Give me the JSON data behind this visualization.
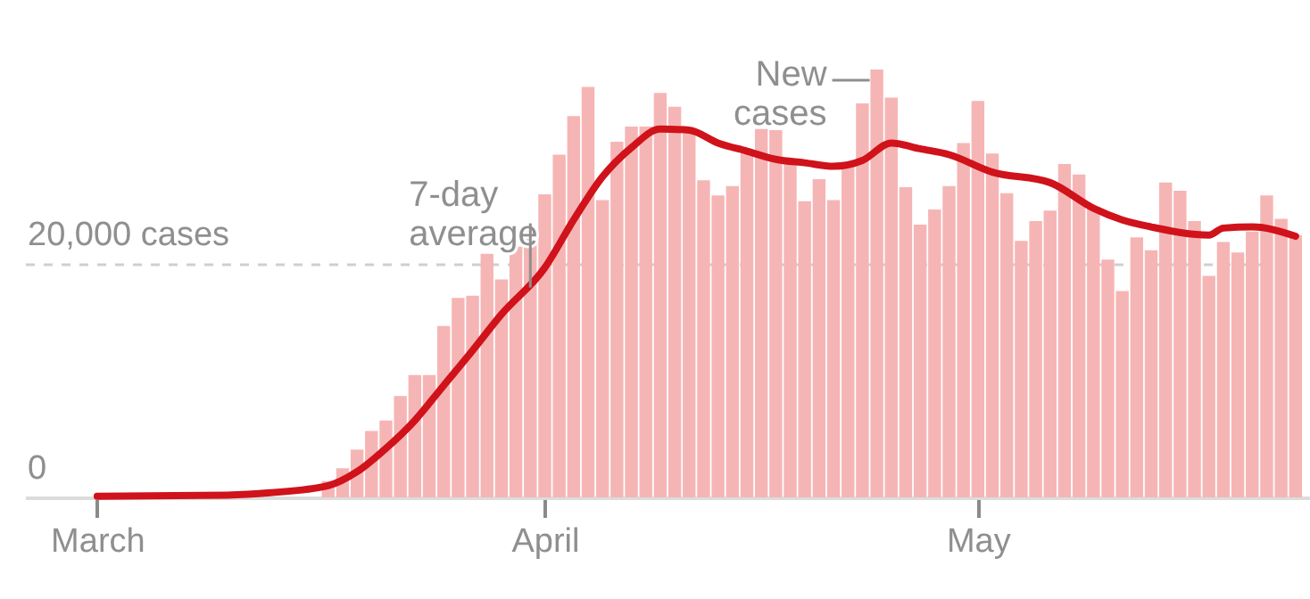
{
  "chart_data": {
    "type": "bar",
    "xlim": [
      "--02-24",
      "--05-24"
    ],
    "xticks": [
      {
        "value": "--03-01",
        "label": "March"
      },
      {
        "value": "--04-01",
        "label": "April"
      },
      {
        "value": "--05-01",
        "label": "May"
      }
    ],
    "ylim": [
      0,
      36700
    ],
    "yticks": [
      {
        "value": 0,
        "label": "0"
      },
      {
        "value": 20000,
        "label": "20,000 cases"
      }
    ],
    "grid": "y",
    "annotations": [
      {
        "text": "7-day average",
        "x": "--03-31",
        "y": 18000
      },
      {
        "text": "New cases",
        "x": "--04-24",
        "y": 36700
      }
    ],
    "series": [
      {
        "color": "#f6b5b5",
        "x": [
          "--03-17",
          "--03-18",
          "--03-19",
          "--03-20",
          "--03-21",
          "--03-22",
          "--03-23",
          "--03-24",
          "--03-25",
          "--03-26",
          "--03-27",
          "--03-28",
          "--03-29",
          "--03-30",
          "--03-31",
          "--04-01",
          "--04-02",
          "--04-03",
          "--04-04",
          "--04-05",
          "--04-06",
          "--04-07",
          "--04-08",
          "--04-09",
          "--04-10",
          "--04-11",
          "--04-12",
          "--04-13",
          "--04-14",
          "--04-15",
          "--04-16",
          "--04-17",
          "--04-18",
          "--04-19",
          "--04-20",
          "--04-21",
          "--04-22",
          "--04-23",
          "--04-24",
          "--04-25",
          "--04-26",
          "--04-27",
          "--04-28",
          "--04-29",
          "--04-30",
          "--05-01",
          "--05-02",
          "--05-03",
          "--05-04",
          "--05-05",
          "--05-06",
          "--05-07",
          "--05-08",
          "--05-09",
          "--05-10",
          "--05-11",
          "--05-12",
          "--05-13",
          "--05-14",
          "--05-15",
          "--05-16",
          "--05-17",
          "--05-18",
          "--05-19",
          "--05-20",
          "--05-21",
          "--05-22",
          "--05-23"
        ],
        "values": [
          1400,
          2500,
          4100,
          5700,
          6600,
          8700,
          10500,
          10500,
          14700,
          17100,
          17300,
          20900,
          18700,
          21500,
          23000,
          26000,
          29400,
          32700,
          35200,
          25500,
          30500,
          31800,
          31800,
          34700,
          33500,
          31700,
          27200,
          25900,
          26700,
          29700,
          31600,
          31500,
          28900,
          25400,
          27300,
          25500,
          28400,
          33800,
          36700,
          34300,
          26600,
          23400,
          24700,
          26700,
          30400,
          34000,
          29500,
          26100,
          22000,
          23700,
          24600,
          28600,
          27700,
          24900,
          20400,
          17700,
          22300,
          21200,
          27000,
          26300,
          23700,
          19000,
          21900,
          21000,
          22800,
          25900,
          23900,
          22500
        ]
      },
      {
        "type": "line",
        "color": "#d0121b",
        "x": [
          "--03-01",
          "--03-10",
          "--03-13",
          "--03-17",
          "--03-19",
          "--03-21",
          "--03-23",
          "--03-25",
          "--03-27",
          "--03-29",
          "--04-01",
          "--04-03",
          "--04-05",
          "--04-07",
          "--04-09",
          "--04-11",
          "--04-13",
          "--04-15",
          "--04-17",
          "--04-19",
          "--04-21",
          "--04-23",
          "--04-25",
          "--04-27",
          "--04-29",
          "--05-02",
          "--05-06",
          "--05-09",
          "--05-11",
          "--05-13",
          "--05-17",
          "--05-18",
          "--05-20",
          "--05-23"
        ],
        "values": [
          100,
          200,
          400,
          1000,
          2200,
          4200,
          6600,
          9600,
          12600,
          15700,
          19700,
          23800,
          27500,
          30000,
          31600,
          31500,
          30400,
          29700,
          29000,
          28700,
          28400,
          28900,
          30400,
          29900,
          29400,
          27900,
          27000,
          24800,
          23800,
          23200,
          22500,
          23100,
          23200,
          22400
        ]
      }
    ]
  }
}
